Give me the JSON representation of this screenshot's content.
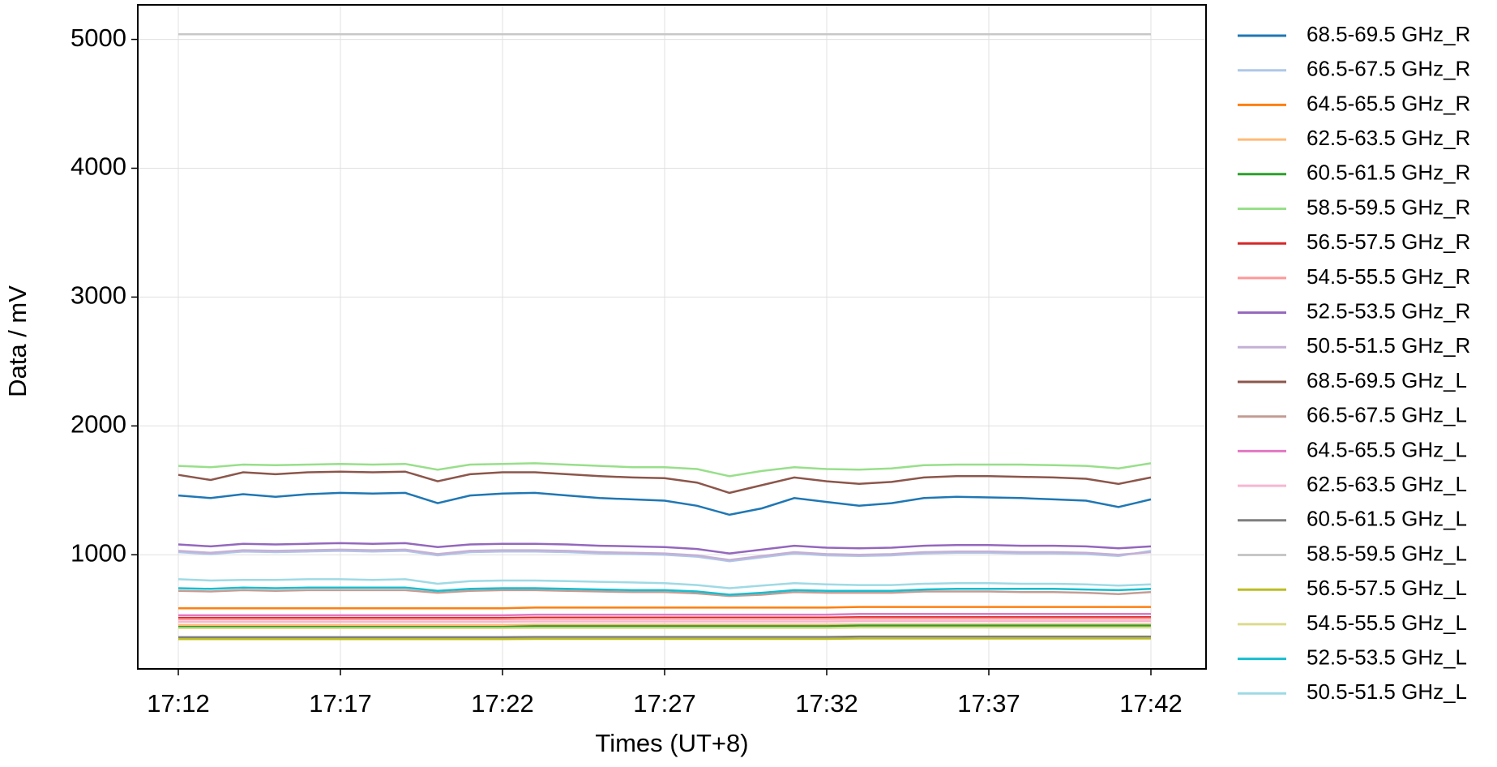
{
  "chart_data": {
    "type": "line",
    "x_label": "Times (UT+8)",
    "y_label": "Data / mV",
    "x": [
      "17:12",
      "17:13",
      "17:14",
      "17:15",
      "17:16",
      "17:17",
      "17:18",
      "17:19",
      "17:20",
      "17:21",
      "17:22",
      "17:23",
      "17:24",
      "17:25",
      "17:26",
      "17:27",
      "17:28",
      "17:29",
      "17:30",
      "17:31",
      "17:32",
      "17:33",
      "17:34",
      "17:35",
      "17:36",
      "17:37",
      "17:38",
      "17:39",
      "17:40",
      "17:41",
      "17:42"
    ],
    "xlim": [
      "17:10:45",
      "17:43:42"
    ],
    "xticks": [
      "17:12",
      "17:17",
      "17:22",
      "17:27",
      "17:32",
      "17:37",
      "17:42"
    ],
    "ylim": [
      114,
      5268
    ],
    "yticks": [
      1000,
      2000,
      3000,
      4000,
      5000
    ],
    "grid": true,
    "legend": "outside right",
    "series": [
      {
        "name": "68.5-69.5 GHz_R",
        "color": "#1f77b4",
        "values": [
          1460,
          1440,
          1470,
          1450,
          1470,
          1480,
          1475,
          1480,
          1400,
          1460,
          1475,
          1480,
          1460,
          1440,
          1430,
          1420,
          1380,
          1310,
          1360,
          1440,
          1410,
          1380,
          1400,
          1440,
          1450,
          1445,
          1440,
          1430,
          1420,
          1370,
          1430
        ]
      },
      {
        "name": "66.5-67.5 GHz_R",
        "color": "#aec7e8",
        "values": [
          1020,
          1005,
          1025,
          1020,
          1025,
          1030,
          1025,
          1030,
          995,
          1020,
          1025,
          1025,
          1020,
          1010,
          1005,
          1000,
          985,
          950,
          980,
          1010,
          995,
          990,
          995,
          1010,
          1015,
          1015,
          1010,
          1010,
          1005,
          990,
          1030
        ]
      },
      {
        "name": "64.5-65.5 GHz_R",
        "color": "#ff7f0e",
        "values": [
          585,
          585,
          585,
          585,
          585,
          585,
          585,
          585,
          585,
          585,
          585,
          590,
          590,
          590,
          590,
          590,
          590,
          590,
          590,
          590,
          590,
          595,
          595,
          595,
          595,
          595,
          595,
          595,
          595,
          595,
          595
        ]
      },
      {
        "name": "62.5-63.5 GHz_R",
        "color": "#ffbb78",
        "values": [
          455,
          455,
          455,
          455,
          455,
          455,
          455,
          455,
          455,
          455,
          455,
          458,
          458,
          458,
          458,
          458,
          458,
          458,
          458,
          458,
          458,
          460,
          460,
          460,
          460,
          460,
          460,
          460,
          460,
          460,
          460
        ]
      },
      {
        "name": "60.5-61.5 GHz_R",
        "color": "#2ca02c",
        "values": [
          440,
          440,
          440,
          440,
          440,
          440,
          440,
          440,
          440,
          440,
          440,
          445,
          445,
          445,
          445,
          445,
          445,
          445,
          445,
          445,
          445,
          450,
          450,
          450,
          450,
          450,
          450,
          450,
          450,
          450,
          450
        ]
      },
      {
        "name": "58.5-59.5 GHz_R",
        "color": "#98df8a",
        "values": [
          1690,
          1680,
          1700,
          1695,
          1700,
          1705,
          1700,
          1705,
          1660,
          1700,
          1705,
          1710,
          1700,
          1690,
          1680,
          1680,
          1665,
          1610,
          1650,
          1680,
          1665,
          1660,
          1670,
          1695,
          1700,
          1700,
          1700,
          1695,
          1690,
          1670,
          1710
        ]
      },
      {
        "name": "56.5-57.5 GHz_R",
        "color": "#d62728",
        "values": [
          510,
          510,
          510,
          510,
          510,
          510,
          510,
          510,
          510,
          510,
          510,
          512,
          512,
          512,
          512,
          512,
          512,
          512,
          512,
          512,
          512,
          515,
          515,
          515,
          515,
          515,
          515,
          515,
          515,
          515,
          515
        ]
      },
      {
        "name": "54.5-55.5 GHz_R",
        "color": "#ff9896",
        "values": [
          500,
          500,
          500,
          500,
          500,
          500,
          500,
          500,
          500,
          500,
          500,
          502,
          502,
          502,
          502,
          502,
          502,
          502,
          502,
          502,
          502,
          505,
          505,
          505,
          505,
          505,
          505,
          505,
          505,
          505,
          505
        ]
      },
      {
        "name": "52.5-53.5 GHz_R",
        "color": "#9467bd",
        "values": [
          1080,
          1065,
          1085,
          1080,
          1085,
          1090,
          1085,
          1090,
          1060,
          1080,
          1085,
          1085,
          1080,
          1070,
          1065,
          1060,
          1045,
          1010,
          1040,
          1070,
          1055,
          1050,
          1055,
          1070,
          1075,
          1075,
          1070,
          1070,
          1065,
          1050,
          1065
        ]
      },
      {
        "name": "50.5-51.5 GHz_R",
        "color": "#c5b0d5",
        "values": [
          1030,
          1015,
          1035,
          1030,
          1035,
          1040,
          1035,
          1040,
          1005,
          1030,
          1035,
          1035,
          1030,
          1020,
          1015,
          1010,
          995,
          960,
          990,
          1020,
          1005,
          1000,
          1005,
          1020,
          1025,
          1025,
          1020,
          1020,
          1015,
          1000,
          1020
        ]
      },
      {
        "name": "68.5-69.5 GHz_L",
        "color": "#8c564b",
        "values": [
          1620,
          1580,
          1640,
          1625,
          1640,
          1645,
          1640,
          1645,
          1570,
          1625,
          1640,
          1640,
          1625,
          1610,
          1600,
          1595,
          1560,
          1480,
          1540,
          1600,
          1570,
          1550,
          1565,
          1600,
          1610,
          1610,
          1605,
          1600,
          1590,
          1550,
          1600
        ]
      },
      {
        "name": "66.5-67.5 GHz_L",
        "color": "#c49c94",
        "values": [
          720,
          715,
          725,
          720,
          725,
          725,
          725,
          725,
          705,
          720,
          725,
          725,
          720,
          715,
          710,
          710,
          700,
          680,
          690,
          710,
          705,
          705,
          705,
          715,
          715,
          715,
          710,
          710,
          705,
          695,
          710
        ]
      },
      {
        "name": "64.5-65.5 GHz_L",
        "color": "#e377c2",
        "values": [
          530,
          530,
          530,
          530,
          530,
          530,
          530,
          530,
          530,
          530,
          530,
          535,
          535,
          535,
          535,
          535,
          535,
          535,
          535,
          535,
          535,
          540,
          540,
          540,
          540,
          540,
          540,
          540,
          540,
          540,
          540
        ]
      },
      {
        "name": "62.5-63.5 GHz_L",
        "color": "#f7b6d2",
        "values": [
          480,
          480,
          480,
          480,
          480,
          480,
          480,
          480,
          480,
          480,
          480,
          482,
          482,
          482,
          482,
          482,
          482,
          482,
          482,
          482,
          482,
          485,
          485,
          485,
          485,
          485,
          485,
          485,
          485,
          485,
          485
        ]
      },
      {
        "name": "60.5-61.5 GHz_L",
        "color": "#7f7f7f",
        "values": [
          360,
          360,
          360,
          360,
          360,
          360,
          360,
          360,
          360,
          360,
          360,
          362,
          362,
          362,
          362,
          362,
          362,
          362,
          362,
          362,
          362,
          365,
          365,
          365,
          365,
          365,
          365,
          365,
          365,
          365,
          365
        ]
      },
      {
        "name": "58.5-59.5 GHz_L",
        "color": "#c7c7c7",
        "values": [
          5040,
          5040,
          5040,
          5040,
          5040,
          5040,
          5040,
          5040,
          5040,
          5040,
          5040,
          5040,
          5040,
          5040,
          5040,
          5040,
          5040,
          5040,
          5040,
          5040,
          5040,
          5040,
          5040,
          5040,
          5040,
          5040,
          5040,
          5040,
          5040,
          5040,
          5040
        ]
      },
      {
        "name": "56.5-57.5 GHz_L",
        "color": "#bcbd22",
        "values": [
          345,
          345,
          345,
          345,
          345,
          345,
          345,
          345,
          345,
          345,
          345,
          347,
          347,
          347,
          347,
          347,
          347,
          347,
          347,
          347,
          347,
          350,
          350,
          350,
          350,
          350,
          350,
          350,
          350,
          350,
          350
        ]
      },
      {
        "name": "54.5-55.5 GHz_L",
        "color": "#dbdb8d",
        "values": [
          430,
          430,
          430,
          430,
          430,
          430,
          430,
          430,
          430,
          430,
          430,
          432,
          432,
          432,
          432,
          432,
          432,
          432,
          432,
          432,
          432,
          435,
          435,
          435,
          435,
          435,
          435,
          435,
          435,
          435,
          435
        ]
      },
      {
        "name": "52.5-53.5 GHz_L",
        "color": "#17becf",
        "values": [
          740,
          735,
          745,
          740,
          745,
          745,
          745,
          745,
          720,
          735,
          740,
          740,
          735,
          730,
          725,
          725,
          715,
          690,
          705,
          725,
          720,
          720,
          720,
          730,
          735,
          735,
          735,
          735,
          730,
          725,
          735
        ]
      },
      {
        "name": "50.5-51.5 GHz_L",
        "color": "#9edae5",
        "values": [
          810,
          800,
          805,
          805,
          810,
          810,
          805,
          810,
          775,
          795,
          800,
          800,
          795,
          790,
          785,
          780,
          765,
          740,
          760,
          780,
          770,
          765,
          765,
          775,
          780,
          780,
          775,
          775,
          770,
          760,
          770
        ]
      }
    ]
  }
}
